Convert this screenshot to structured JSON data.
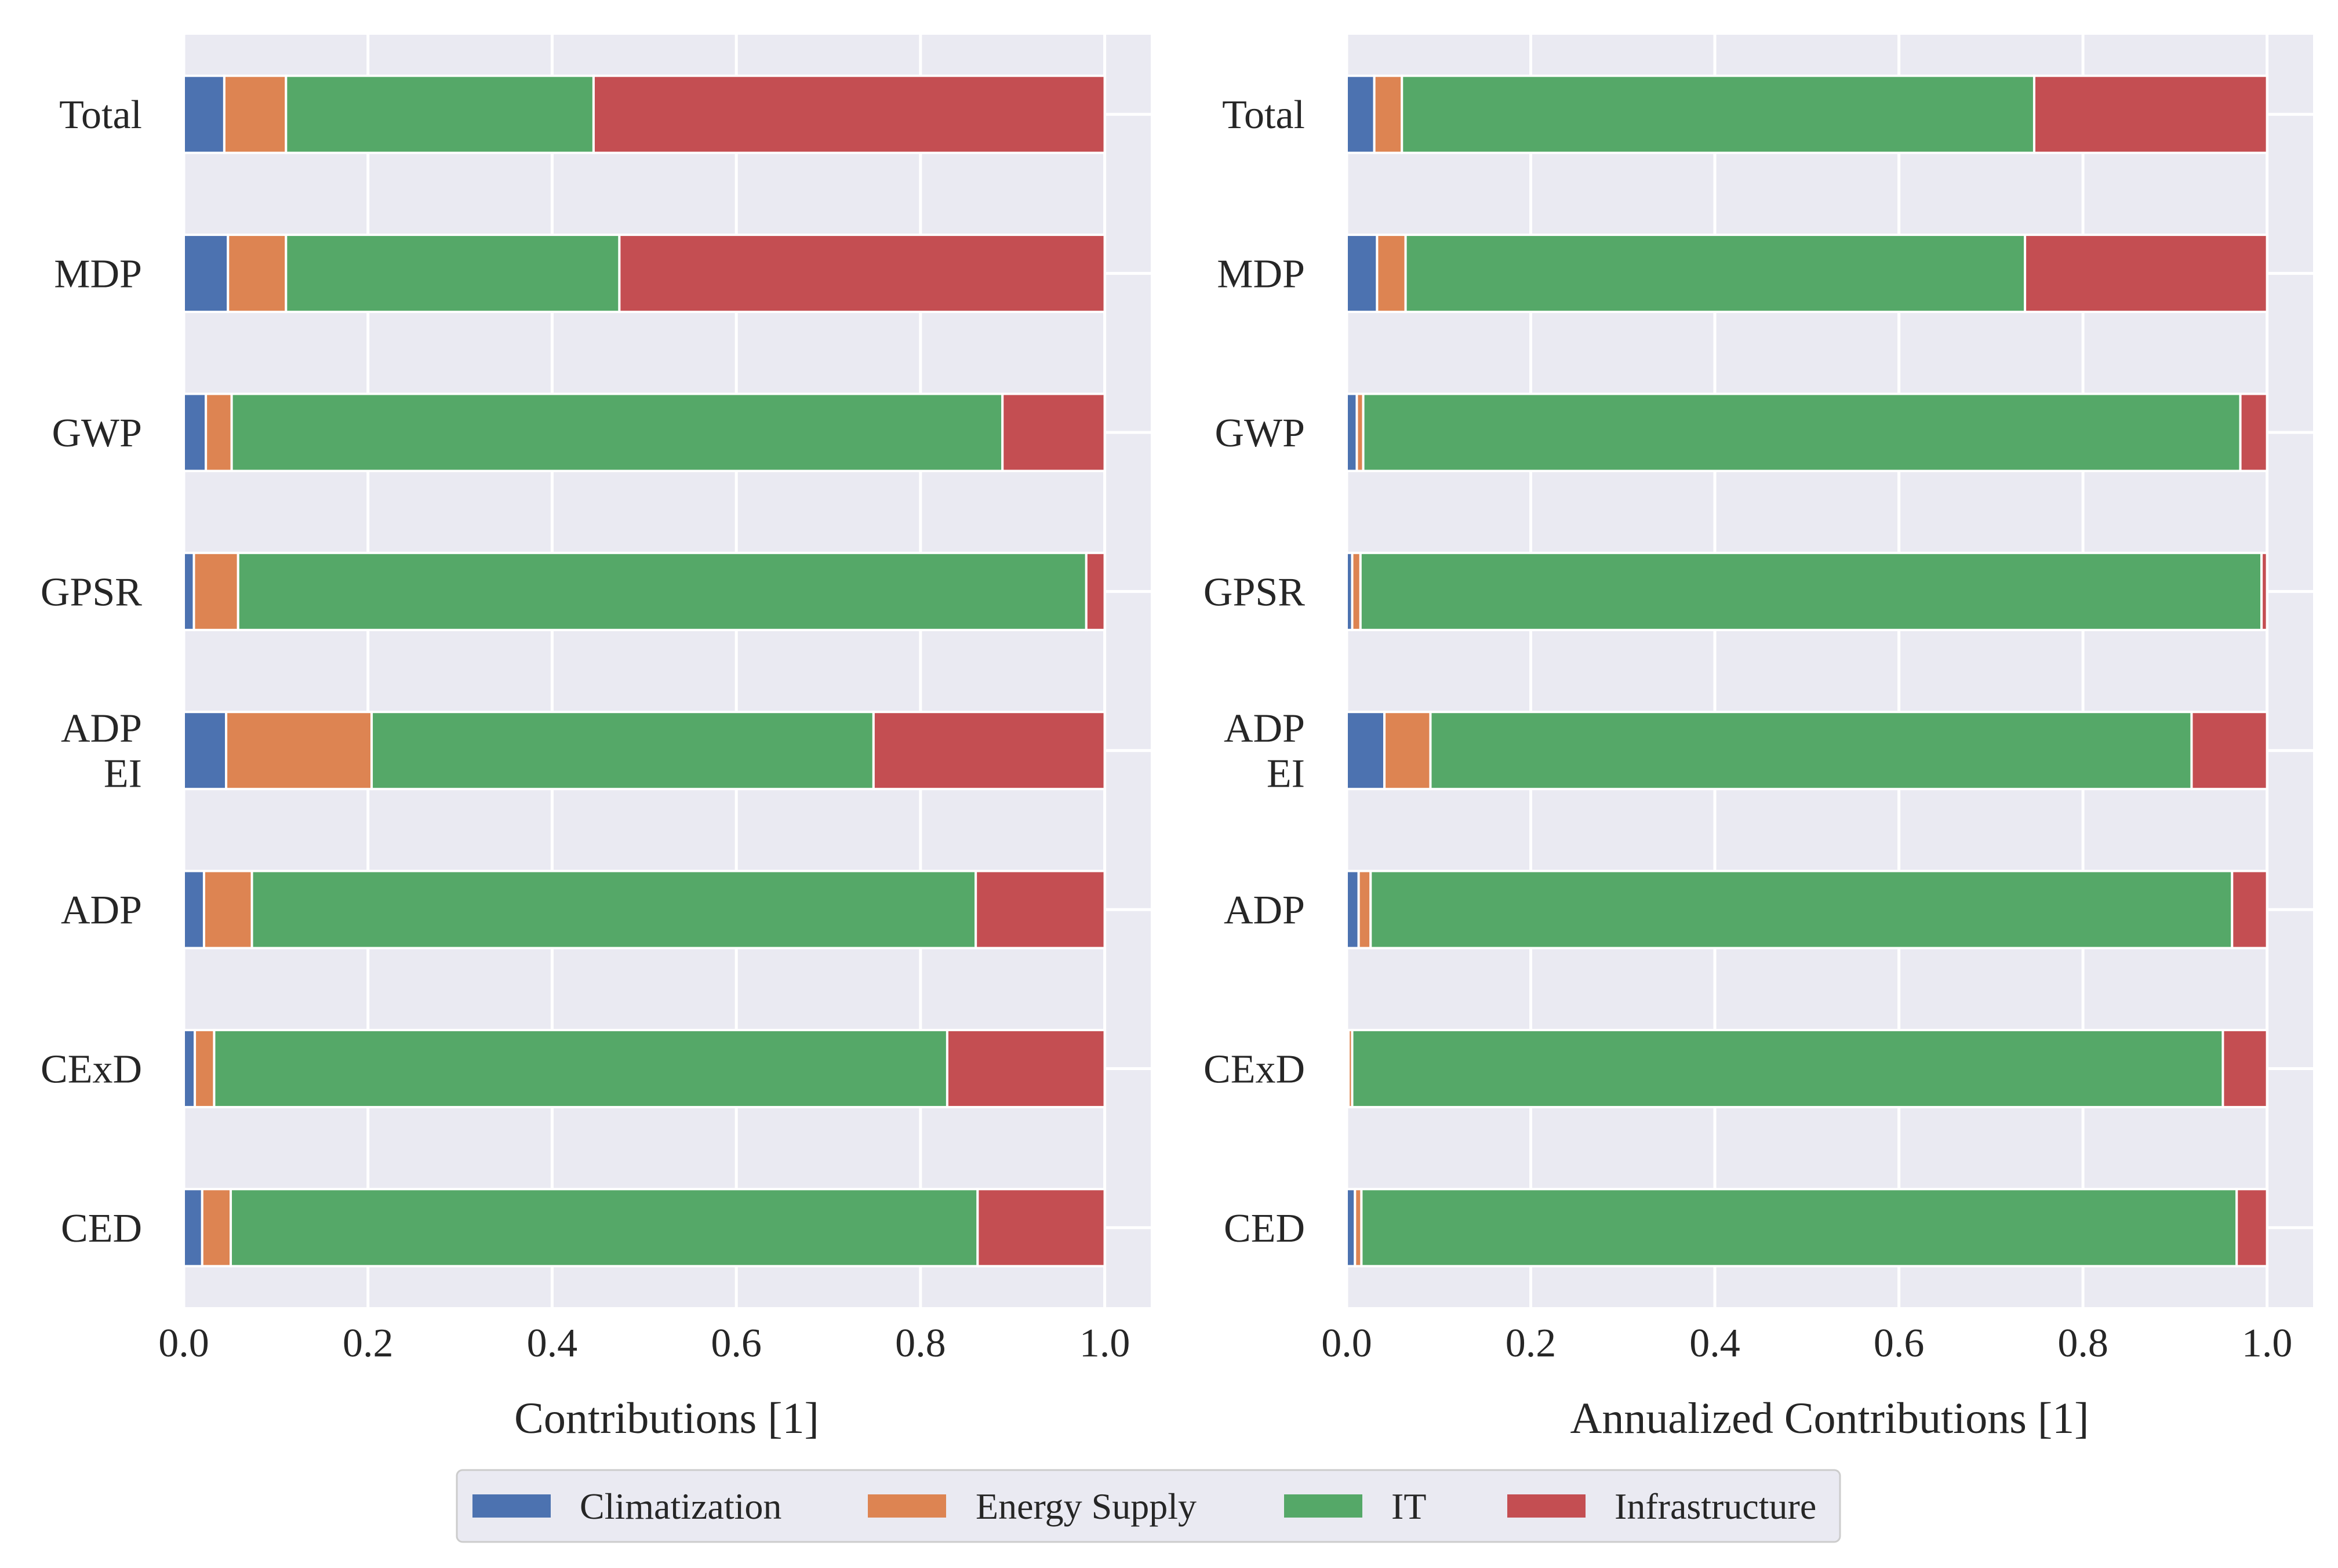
{
  "legend": {
    "placement": "bottom-center",
    "items": [
      {
        "label": "Climatization",
        "color": "#4C72B0"
      },
      {
        "label": "Energy Supply",
        "color": "#DD8452"
      },
      {
        "label": "IT",
        "color": "#55A868"
      },
      {
        "label": "Infrastructure",
        "color": "#C44E52"
      }
    ]
  },
  "chart_data": [
    {
      "type": "bar",
      "orientation": "horizontal",
      "stacked": true,
      "xlabel": "Contributions [1]",
      "ylabel": "",
      "title": "",
      "xlim": [
        0.0,
        1.05
      ],
      "xticks": [
        "0.0",
        "0.2",
        "0.4",
        "0.6",
        "0.8",
        "1.0"
      ],
      "grid": true,
      "categories": [
        {
          "label": "Total",
          "lines": [
            "Total"
          ]
        },
        {
          "label": "MDP",
          "lines": [
            "MDP"
          ]
        },
        {
          "label": "GWP",
          "lines": [
            "GWP"
          ]
        },
        {
          "label": "GPSR",
          "lines": [
            "GPSR"
          ]
        },
        {
          "label": "ADP EI",
          "lines": [
            "ADP",
            "EI"
          ]
        },
        {
          "label": "ADP",
          "lines": [
            "ADP"
          ]
        },
        {
          "label": "CExD",
          "lines": [
            "CExD"
          ]
        },
        {
          "label": "CED",
          "lines": [
            "CED"
          ]
        }
      ],
      "series": [
        {
          "name": "Climatization",
          "color": "#4C72B0",
          "values": [
            0.044,
            0.048,
            0.024,
            0.011,
            0.046,
            0.022,
            0.012,
            0.02
          ]
        },
        {
          "name": "Energy Supply",
          "color": "#DD8452",
          "values": [
            0.067,
            0.063,
            0.028,
            0.048,
            0.158,
            0.052,
            0.021,
            0.031
          ]
        },
        {
          "name": "IT",
          "color": "#55A868",
          "values": [
            0.334,
            0.362,
            0.837,
            0.921,
            0.545,
            0.786,
            0.796,
            0.811
          ]
        },
        {
          "name": "Infrastructure",
          "color": "#C44E52",
          "values": [
            0.555,
            0.527,
            0.111,
            0.02,
            0.251,
            0.14,
            0.171,
            0.138
          ]
        }
      ]
    },
    {
      "type": "bar",
      "orientation": "horizontal",
      "stacked": true,
      "xlabel": "Annualized Contributions [1]",
      "ylabel": "",
      "title": "",
      "xlim": [
        0.0,
        1.05
      ],
      "xticks": [
        "0.0",
        "0.2",
        "0.4",
        "0.6",
        "0.8",
        "1.0"
      ],
      "grid": true,
      "categories": [
        {
          "label": "Total",
          "lines": [
            "Total"
          ]
        },
        {
          "label": "MDP",
          "lines": [
            "MDP"
          ]
        },
        {
          "label": "GWP",
          "lines": [
            "GWP"
          ]
        },
        {
          "label": "GPSR",
          "lines": [
            "GPSR"
          ]
        },
        {
          "label": "ADP EI",
          "lines": [
            "ADP",
            "EI"
          ]
        },
        {
          "label": "ADP",
          "lines": [
            "ADP"
          ]
        },
        {
          "label": "CExD",
          "lines": [
            "CExD"
          ]
        },
        {
          "label": "CED",
          "lines": [
            "CED"
          ]
        }
      ],
      "series": [
        {
          "name": "Climatization",
          "color": "#4C72B0",
          "values": [
            0.03,
            0.033,
            0.011,
            0.006,
            0.041,
            0.013,
            0.002,
            0.009
          ]
        },
        {
          "name": "Energy Supply",
          "color": "#DD8452",
          "values": [
            0.03,
            0.031,
            0.007,
            0.009,
            0.05,
            0.013,
            0.004,
            0.007
          ]
        },
        {
          "name": "IT",
          "color": "#55A868",
          "values": [
            0.687,
            0.673,
            0.953,
            0.979,
            0.827,
            0.936,
            0.946,
            0.951
          ]
        },
        {
          "name": "Infrastructure",
          "color": "#C44E52",
          "values": [
            0.253,
            0.263,
            0.029,
            0.006,
            0.082,
            0.038,
            0.048,
            0.033
          ]
        }
      ]
    }
  ]
}
